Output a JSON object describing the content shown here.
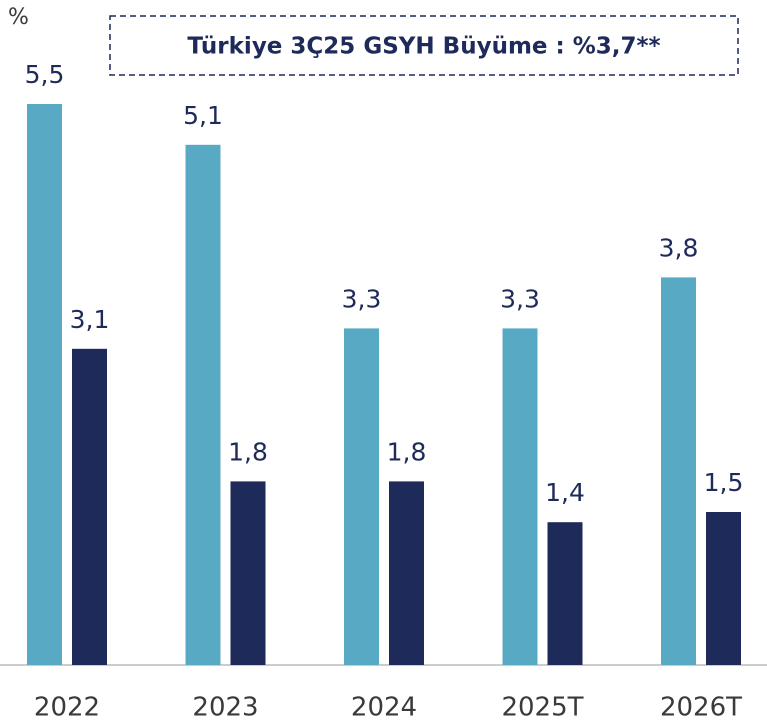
{
  "chart_data": {
    "type": "bar",
    "y_label": "%",
    "annotation": "Türkiye 3Ç25 GSYH Büyüme : %3,7**",
    "categories": [
      "2022",
      "2023",
      "2024",
      "2025T",
      "2026T"
    ],
    "series": [
      {
        "color": "#58a9c3",
        "values": [
          5.5,
          5.1,
          3.3,
          3.3,
          3.8
        ],
        "value_labels": [
          "5,5",
          "5,1",
          "3,3",
          "3,3",
          "3,8"
        ]
      },
      {
        "color": "#1e2a5a",
        "values": [
          3.1,
          1.8,
          1.8,
          1.4,
          1.5
        ],
        "value_labels": [
          "3,1",
          "1,8",
          "1,8",
          "1,4",
          "1,5"
        ]
      }
    ],
    "ylim": [
      0,
      5.5
    ]
  }
}
